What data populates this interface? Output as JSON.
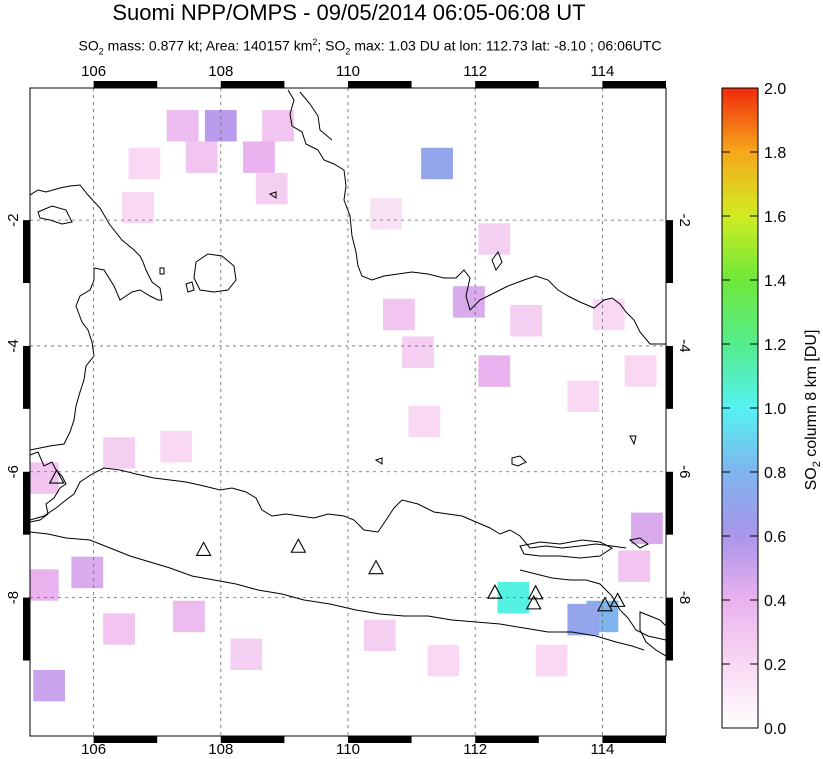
{
  "title": "Suomi NPP/OMPS - 09/05/2014 06:05-06:08 UT",
  "subtitle": {
    "so2_prefix": "SO",
    "mass_label": " mass: ",
    "mass_value": "0.877 kt",
    "area_label": "; Area: ",
    "area_value": "140157 km",
    "max_label": "; SO",
    "max_text": " max: 1.03 DU at lon: 112.73 lat: -8.10 ; 06:06UTC"
  },
  "map": {
    "lon_ticks": [
      "106",
      "108",
      "110",
      "112",
      "114"
    ],
    "lat_ticks": [
      "-2",
      "-4",
      "-6",
      "-8"
    ],
    "lon_range": [
      105,
      115
    ],
    "lat_range": [
      -10.2,
      0.1
    ]
  },
  "colorbar": {
    "ticks": [
      "2.0",
      "1.8",
      "1.6",
      "1.4",
      "1.2",
      "1.0",
      "0.8",
      "0.6",
      "0.4",
      "0.2",
      "0.0"
    ],
    "label": "SO2 column 8 km [DU]",
    "range": [
      0,
      2.0
    ]
  },
  "volcanoes": [
    {
      "lon": 105.42,
      "lat": -6.1
    },
    {
      "lon": 107.73,
      "lat": -7.25
    },
    {
      "lon": 109.22,
      "lat": -7.2
    },
    {
      "lon": 110.44,
      "lat": -7.54
    },
    {
      "lon": 112.31,
      "lat": -7.93
    },
    {
      "lon": 112.95,
      "lat": -7.94
    },
    {
      "lon": 112.92,
      "lat": -8.1
    },
    {
      "lon": 114.04,
      "lat": -8.13
    },
    {
      "lon": 114.24,
      "lat": -8.06
    }
  ],
  "so2_cells": [
    {
      "lon": 107.4,
      "lat": -0.5,
      "v": 0.35
    },
    {
      "lon": 108.0,
      "lat": -0.5,
      "v": 0.55
    },
    {
      "lon": 108.9,
      "lat": -0.5,
      "v": 0.3
    },
    {
      "lon": 106.8,
      "lat": -1.1,
      "v": 0.2
    },
    {
      "lon": 107.7,
      "lat": -1.0,
      "v": 0.3
    },
    {
      "lon": 108.6,
      "lat": -1.0,
      "v": 0.4
    },
    {
      "lon": 108.8,
      "lat": -1.5,
      "v": 0.25
    },
    {
      "lon": 111.4,
      "lat": -1.1,
      "v": 0.7
    },
    {
      "lon": 106.7,
      "lat": -1.8,
      "v": 0.2
    },
    {
      "lon": 110.6,
      "lat": -1.9,
      "v": 0.15
    },
    {
      "lon": 112.3,
      "lat": -2.3,
      "v": 0.25
    },
    {
      "lon": 111.9,
      "lat": -3.3,
      "v": 0.45
    },
    {
      "lon": 110.8,
      "lat": -3.5,
      "v": 0.3
    },
    {
      "lon": 112.8,
      "lat": -3.6,
      "v": 0.25
    },
    {
      "lon": 114.1,
      "lat": -3.5,
      "v": 0.2
    },
    {
      "lon": 112.3,
      "lat": -4.4,
      "v": 0.4
    },
    {
      "lon": 111.1,
      "lat": -4.1,
      "v": 0.25
    },
    {
      "lon": 113.7,
      "lat": -4.8,
      "v": 0.2
    },
    {
      "lon": 114.6,
      "lat": -4.4,
      "v": 0.2
    },
    {
      "lon": 111.2,
      "lat": -5.2,
      "v": 0.2
    },
    {
      "lon": 106.4,
      "lat": -5.7,
      "v": 0.25
    },
    {
      "lon": 107.3,
      "lat": -5.6,
      "v": 0.2
    },
    {
      "lon": 105.2,
      "lat": -6.1,
      "v": 0.3
    },
    {
      "lon": 105.2,
      "lat": -7.8,
      "v": 0.4
    },
    {
      "lon": 105.9,
      "lat": -7.6,
      "v": 0.45
    },
    {
      "lon": 107.5,
      "lat": -8.3,
      "v": 0.35
    },
    {
      "lon": 106.4,
      "lat": -8.5,
      "v": 0.3
    },
    {
      "lon": 105.3,
      "lat": -9.4,
      "v": 0.5
    },
    {
      "lon": 108.4,
      "lat": -8.9,
      "v": 0.25
    },
    {
      "lon": 110.5,
      "lat": -8.6,
      "v": 0.25
    },
    {
      "lon": 111.5,
      "lat": -9.0,
      "v": 0.2
    },
    {
      "lon": 112.6,
      "lat": -8.0,
      "v": 1.03
    },
    {
      "lon": 114.0,
      "lat": -8.3,
      "v": 0.8
    },
    {
      "lon": 113.7,
      "lat": -8.35,
      "v": 0.7
    },
    {
      "lon": 114.7,
      "lat": -6.9,
      "v": 0.45
    },
    {
      "lon": 114.5,
      "lat": -7.5,
      "v": 0.3
    },
    {
      "lon": 113.2,
      "lat": -9.0,
      "v": 0.2
    }
  ]
}
